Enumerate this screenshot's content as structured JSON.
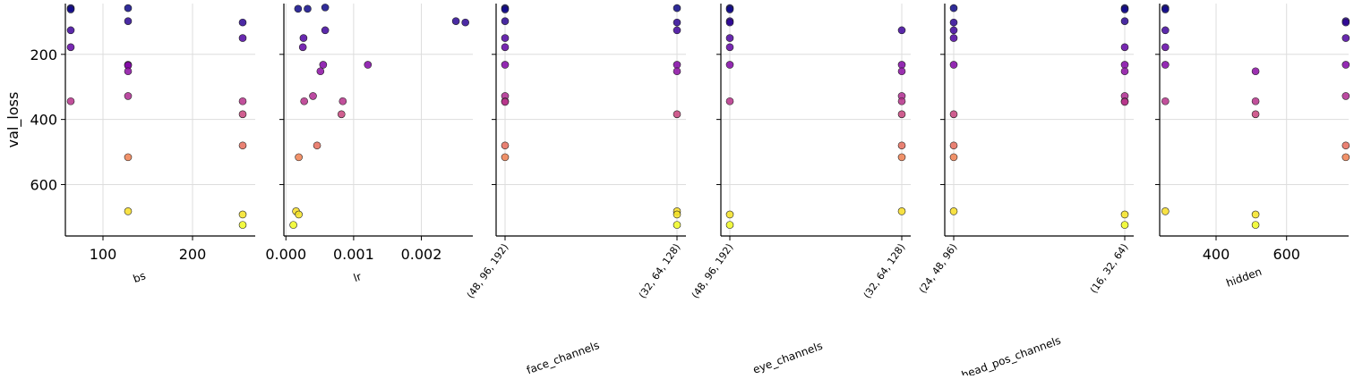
{
  "chart_data": {
    "type": "scatter",
    "ylabel": "val_loss",
    "y_ticks": [
      200,
      400,
      600
    ],
    "y_range": [
      44,
      758
    ],
    "y_inverted": true,
    "grid": true,
    "point_colormap": "plasma",
    "colors": {
      "axis": "#000000",
      "grid": "#dddddd",
      "point_edge": "#222222"
    },
    "loss_values": [
      58,
      62,
      98,
      102,
      126,
      150,
      178,
      232,
      234,
      252,
      328,
      344,
      384,
      480,
      516,
      682,
      692,
      724
    ],
    "panels": [
      {
        "xlabel": "bs",
        "scale": "linear",
        "xlim": [
          58,
          270
        ],
        "x_ticks": [
          100,
          200
        ],
        "x_tick_labels": [
          "100",
          "200"
        ],
        "points": [
          [
            64,
            58
          ],
          [
            64,
            62
          ],
          [
            64,
            126
          ],
          [
            64,
            178
          ],
          [
            64,
            344
          ],
          [
            128,
            58
          ],
          [
            128,
            98
          ],
          [
            128,
            232
          ],
          [
            128,
            234
          ],
          [
            128,
            252
          ],
          [
            128,
            328
          ],
          [
            128,
            516
          ],
          [
            128,
            682
          ],
          [
            256,
            102
          ],
          [
            256,
            150
          ],
          [
            256,
            344
          ],
          [
            256,
            384
          ],
          [
            256,
            480
          ],
          [
            256,
            692
          ],
          [
            256,
            724
          ]
        ]
      },
      {
        "xlabel": "lr",
        "scale": "linear",
        "xlim": [
          -3e-05,
          0.00276
        ],
        "x_ticks": [
          0.0,
          0.001,
          0.002
        ],
        "x_tick_labels": [
          "0.000",
          "0.001",
          "0.002"
        ],
        "points": [
          [
            0.00018,
            60
          ],
          [
            0.00032,
            60
          ],
          [
            0.00058,
            56
          ],
          [
            0.00058,
            126
          ],
          [
            0.00026,
            150
          ],
          [
            0.00025,
            178
          ],
          [
            0.00055,
            232
          ],
          [
            0.00121,
            232
          ],
          [
            0.00051,
            252
          ],
          [
            0.0004,
            328
          ],
          [
            0.00027,
            344
          ],
          [
            0.00084,
            344
          ],
          [
            0.00082,
            384
          ],
          [
            0.00046,
            480
          ],
          [
            0.00019,
            516
          ],
          [
            0.00015,
            682
          ],
          [
            0.00019,
            692
          ],
          [
            0.00011,
            724
          ],
          [
            0.00251,
            98
          ],
          [
            0.00265,
            102
          ]
        ]
      },
      {
        "xlabel": "face_channels",
        "scale": "categorical",
        "categories": [
          "(48, 96, 192)",
          "(32, 64, 128)"
        ],
        "points": [
          [
            0,
            58
          ],
          [
            0,
            62
          ],
          [
            0,
            98
          ],
          [
            0,
            150
          ],
          [
            0,
            178
          ],
          [
            0,
            232
          ],
          [
            0,
            328
          ],
          [
            0,
            344
          ],
          [
            0,
            346
          ],
          [
            0,
            480
          ],
          [
            0,
            516
          ],
          [
            1,
            58
          ],
          [
            1,
            102
          ],
          [
            1,
            126
          ],
          [
            1,
            232
          ],
          [
            1,
            252
          ],
          [
            1,
            384
          ],
          [
            1,
            682
          ],
          [
            1,
            692
          ],
          [
            1,
            724
          ]
        ]
      },
      {
        "xlabel": "eye_channels",
        "scale": "categorical",
        "categories": [
          "(48, 96, 192)",
          "(32, 64, 128)"
        ],
        "points": [
          [
            0,
            58
          ],
          [
            0,
            62
          ],
          [
            0,
            98
          ],
          [
            0,
            102
          ],
          [
            0,
            150
          ],
          [
            0,
            178
          ],
          [
            0,
            232
          ],
          [
            0,
            344
          ],
          [
            0,
            692
          ],
          [
            0,
            724
          ],
          [
            1,
            126
          ],
          [
            1,
            232
          ],
          [
            1,
            252
          ],
          [
            1,
            328
          ],
          [
            1,
            344
          ],
          [
            1,
            384
          ],
          [
            1,
            480
          ],
          [
            1,
            516
          ],
          [
            1,
            682
          ]
        ]
      },
      {
        "xlabel": "head_pos_channels",
        "scale": "categorical",
        "categories": [
          "(24, 48, 96)",
          "(16, 32, 64)"
        ],
        "points": [
          [
            0,
            58
          ],
          [
            0,
            102
          ],
          [
            0,
            126
          ],
          [
            0,
            150
          ],
          [
            0,
            232
          ],
          [
            0,
            384
          ],
          [
            0,
            480
          ],
          [
            0,
            516
          ],
          [
            0,
            682
          ],
          [
            1,
            58
          ],
          [
            1,
            62
          ],
          [
            1,
            98
          ],
          [
            1,
            178
          ],
          [
            1,
            232
          ],
          [
            1,
            252
          ],
          [
            1,
            328
          ],
          [
            1,
            344
          ],
          [
            1,
            346
          ],
          [
            1,
            692
          ],
          [
            1,
            724
          ]
        ]
      },
      {
        "xlabel": "hidden",
        "scale": "linear",
        "xlim": [
          240,
          776
        ],
        "x_ticks": [
          400,
          600
        ],
        "x_tick_labels": [
          "400",
          "600"
        ],
        "points": [
          [
            256,
            58
          ],
          [
            256,
            62
          ],
          [
            256,
            126
          ],
          [
            256,
            178
          ],
          [
            256,
            232
          ],
          [
            256,
            344
          ],
          [
            256,
            682
          ],
          [
            512,
            252
          ],
          [
            512,
            344
          ],
          [
            512,
            384
          ],
          [
            512,
            692
          ],
          [
            512,
            724
          ],
          [
            768,
            98
          ],
          [
            768,
            102
          ],
          [
            768,
            150
          ],
          [
            768,
            232
          ],
          [
            768,
            328
          ],
          [
            768,
            480
          ],
          [
            768,
            516
          ]
        ]
      }
    ]
  }
}
